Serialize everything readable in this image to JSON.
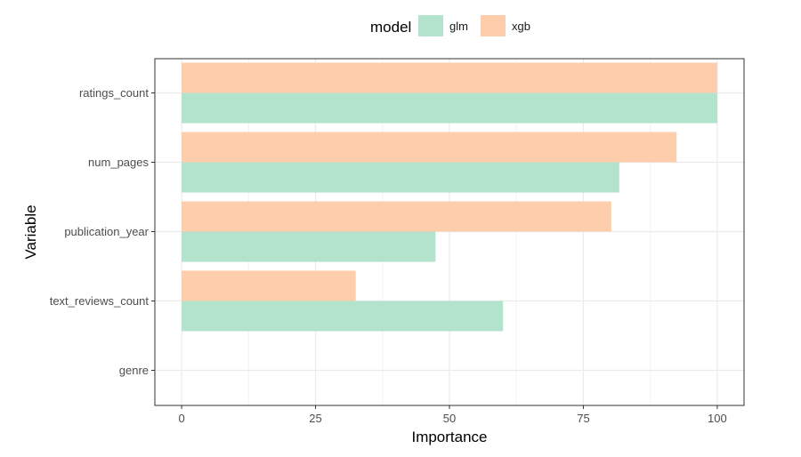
{
  "chart_data": {
    "type": "bar",
    "orientation": "horizontal",
    "categories": [
      "ratings_count",
      "num_pages",
      "publication_year",
      "text_reviews_count",
      "genre"
    ],
    "series": [
      {
        "name": "glm",
        "values": [
          100,
          81.7,
          47.4,
          60.0,
          0
        ],
        "color": "#b3e2cd"
      },
      {
        "name": "xgb",
        "values": [
          100,
          92.4,
          80.2,
          32.5,
          0
        ],
        "color": "#fdcdac"
      }
    ],
    "xlabel": "Importance",
    "ylabel": "Variable",
    "xlim": [
      -5,
      105
    ],
    "xticks": [
      "0",
      "25",
      "50",
      "75",
      "100"
    ],
    "grid": true,
    "legend": {
      "title": "model",
      "position": "top"
    }
  }
}
